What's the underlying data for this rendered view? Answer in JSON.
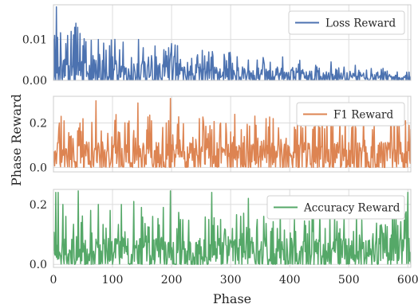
{
  "chart_data": {
    "type": "line",
    "xlabel": "Phase",
    "ylabel": "Phase Reward",
    "xlim": [
      0,
      605
    ],
    "x_ticks": [
      "0",
      "100",
      "200",
      "300",
      "400",
      "500",
      "600"
    ],
    "x_tick_values": [
      0,
      100,
      200,
      300,
      400,
      500,
      600
    ],
    "grid": true,
    "panels": [
      {
        "name": "Loss Reward",
        "color": "#4c72b0",
        "ylim": [
          0,
          0.0185
        ],
        "y_ticks": [
          "0.00",
          "0.01"
        ],
        "y_tick_values": [
          0,
          0.01
        ],
        "legend": "top-right",
        "peaks": [
          [
            5,
            0.018
          ],
          [
            2,
            0.011
          ],
          [
            13,
            0.006
          ],
          [
            24,
            0.011
          ],
          [
            30,
            0.012
          ],
          [
            36,
            0.013
          ],
          [
            38,
            0.014
          ],
          [
            41,
            0.013
          ],
          [
            45,
            0.0115
          ],
          [
            50,
            0.0085
          ],
          [
            55,
            0.0095
          ],
          [
            76,
            0.01
          ],
          [
            95,
            0.0085
          ],
          [
            112,
            0.0075
          ],
          [
            144,
            0.01
          ],
          [
            152,
            0.008
          ],
          [
            195,
            0.008
          ],
          [
            200,
            0.009
          ],
          [
            210,
            0.0085
          ],
          [
            270,
            0.006
          ],
          [
            300,
            0.0055
          ],
          [
            330,
            0.005
          ],
          [
            345,
            0.005
          ],
          [
            415,
            0.004
          ],
          [
            450,
            0.003
          ],
          [
            480,
            0.0025
          ],
          [
            540,
            0.0015
          ],
          [
            580,
            0.0012
          ]
        ],
        "base": [
          0.004,
          0.0008
        ],
        "floor": 0.0
      },
      {
        "name": "F1 Reward",
        "color": "#dd8452",
        "ylim": [
          -0.02,
          0.32
        ],
        "y_ticks": [
          "0.0",
          "0.2"
        ],
        "y_tick_values": [
          0,
          0.2
        ],
        "legend": "top-right",
        "peaks": [
          [
            1,
            0.07
          ],
          [
            10,
            0.2
          ],
          [
            13,
            0.23
          ],
          [
            18,
            0.21
          ],
          [
            45,
            0.2
          ],
          [
            72,
            0.3
          ],
          [
            110,
            0.16
          ],
          [
            126,
            0.2
          ],
          [
            143,
            0.29
          ],
          [
            166,
            0.21
          ],
          [
            185,
            0.18
          ],
          [
            198,
            0.31
          ],
          [
            247,
            0.22
          ],
          [
            255,
            0.16
          ],
          [
            268,
            0.17
          ],
          [
            283,
            0.2
          ],
          [
            300,
            0.16
          ],
          [
            318,
            0.17
          ],
          [
            343,
            0.19
          ],
          [
            360,
            0.22
          ],
          [
            372,
            0.22
          ],
          [
            410,
            0.17
          ],
          [
            427,
            0.19
          ],
          [
            443,
            0.19
          ],
          [
            473,
            0.23
          ],
          [
            505,
            0.18
          ],
          [
            540,
            0.17
          ],
          [
            577,
            0.26
          ],
          [
            596,
            0.21
          ]
        ],
        "base": [
          0.08,
          0.08
        ],
        "floor": 0.0
      },
      {
        "name": "Accuracy Reward",
        "color": "#55a868",
        "ylim": [
          -0.01,
          0.25
        ],
        "y_ticks": [
          "0.0",
          "0.2"
        ],
        "y_tick_values": [
          0,
          0.2
        ],
        "legend": "top-right",
        "peaks": [
          [
            4,
            0.24
          ],
          [
            8,
            0.24
          ],
          [
            16,
            0.2
          ],
          [
            21,
            0.16
          ],
          [
            42,
            0.245
          ],
          [
            47,
            0.14
          ],
          [
            63,
            0.18
          ],
          [
            76,
            0.2
          ],
          [
            96,
            0.18
          ],
          [
            115,
            0.2
          ],
          [
            136,
            0.21
          ],
          [
            149,
            0.19
          ],
          [
            168,
            0.16
          ],
          [
            186,
            0.19
          ],
          [
            198,
            0.245
          ],
          [
            215,
            0.15
          ],
          [
            263,
            0.15
          ],
          [
            268,
            0.24
          ],
          [
            283,
            0.15
          ],
          [
            303,
            0.12
          ],
          [
            330,
            0.22
          ],
          [
            345,
            0.15
          ],
          [
            368,
            0.11
          ],
          [
            410,
            0.11
          ],
          [
            427,
            0.13
          ],
          [
            460,
            0.12
          ],
          [
            508,
            0.11
          ],
          [
            553,
            0.13
          ],
          [
            583,
            0.13
          ],
          [
            600,
            0.24
          ]
        ],
        "base": [
          0.06,
          0.06
        ],
        "floor": 0.0
      }
    ]
  }
}
